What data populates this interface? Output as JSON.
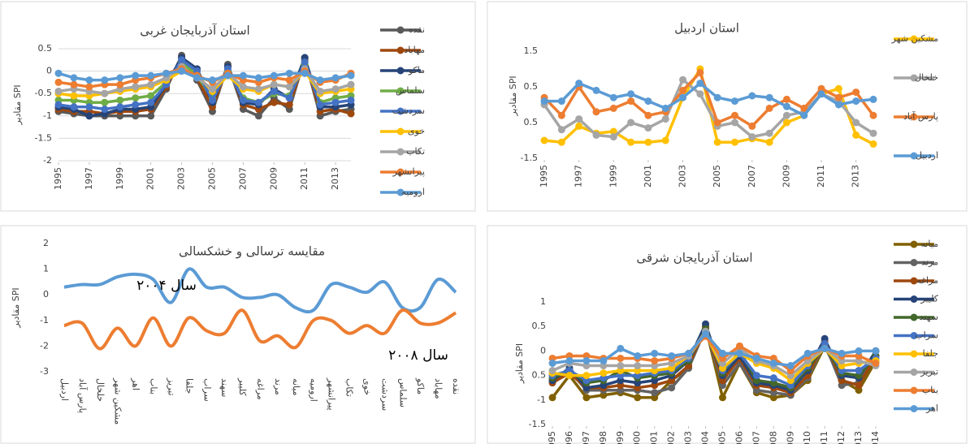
{
  "chart_data": [
    {
      "type": "line",
      "title": "استان آذربایجان غربی",
      "y_label": "مقادیر SPI",
      "x": [
        1995,
        1996,
        1997,
        1998,
        1999,
        2000,
        2001,
        2002,
        2003,
        2004,
        2005,
        2006,
        2007,
        2008,
        2009,
        2010,
        2011,
        2012,
        2013,
        2014
      ],
      "xlim": [
        1995,
        2014
      ],
      "xticks": [
        1995,
        1997,
        1999,
        2001,
        2003,
        2005,
        2007,
        2009,
        2011,
        2013
      ],
      "ylim": [
        -2,
        0.5
      ],
      "yticks": [
        0.5,
        0,
        -0.5,
        -1,
        -1.5,
        -2
      ],
      "grid": true,
      "markers": true,
      "legend": "right",
      "series": [
        {
          "name": "نقده",
          "color": "#595959",
          "values": [
            -0.9,
            -0.95,
            -1,
            -1,
            -1,
            -1,
            -1,
            -0.4,
            0.35,
            -0.2,
            -0.9,
            0.15,
            -0.85,
            -1,
            -0.6,
            -0.85,
            0.3,
            -1,
            -0.9,
            -0.85
          ]
        },
        {
          "name": "مهاباد",
          "color": "#9e480e",
          "values": [
            -0.85,
            -0.9,
            -0.9,
            -0.95,
            -0.9,
            -0.9,
            -0.85,
            -0.35,
            0.3,
            -0.15,
            -0.8,
            0.1,
            -0.75,
            -0.85,
            -0.7,
            -0.75,
            0.25,
            -0.9,
            -0.85,
            -0.95
          ]
        },
        {
          "name": "ماکو",
          "color": "#264478",
          "values": [
            -0.8,
            -0.85,
            -1,
            -0.95,
            -0.85,
            -0.85,
            -0.8,
            -0.3,
            0.3,
            0.05,
            -0.7,
            0.1,
            -0.7,
            -0.75,
            -0.4,
            -0.6,
            0.3,
            -0.8,
            -0.8,
            -0.75
          ]
        },
        {
          "name": "سلماس",
          "color": "#70ad47",
          "values": [
            -0.65,
            -0.65,
            -0.7,
            -0.7,
            -0.65,
            -0.6,
            -0.55,
            -0.25,
            0.2,
            -0.1,
            -0.6,
            0,
            -0.6,
            -0.7,
            -0.5,
            -0.55,
            0.15,
            -0.7,
            -0.6,
            -0.55
          ]
        },
        {
          "name": "سردشت",
          "color": "#4472c4",
          "values": [
            -0.75,
            -0.8,
            -0.8,
            -0.85,
            -0.8,
            -0.75,
            -0.7,
            -0.3,
            0.25,
            0,
            -0.65,
            0.05,
            -0.65,
            -0.7,
            -0.45,
            -0.6,
            0.2,
            -0.75,
            -0.7,
            -0.65
          ]
        },
        {
          "name": "خوی",
          "color": "#ffc000",
          "values": [
            -0.5,
            -0.55,
            -0.55,
            -0.5,
            -0.45,
            -0.4,
            -0.35,
            -0.2,
            0,
            -0.1,
            -0.45,
            -0.1,
            -0.4,
            -0.45,
            -0.3,
            -0.35,
            0,
            -0.5,
            -0.45,
            -0.4
          ]
        },
        {
          "name": "تکاب",
          "color": "#a5a5a5",
          "values": [
            -0.45,
            -0.4,
            -0.45,
            -0.5,
            -0.4,
            -0.35,
            -0.3,
            -0.15,
            0.1,
            -0.15,
            -0.4,
            -0.05,
            -0.35,
            -0.4,
            -0.3,
            -0.35,
            0.05,
            -0.45,
            -0.4,
            -0.3
          ]
        },
        {
          "name": "پیرانشهر",
          "color": "#ed7d31",
          "values": [
            -0.25,
            -0.3,
            -0.35,
            -0.3,
            -0.3,
            -0.2,
            -0.15,
            -0.05,
            0.05,
            -0.1,
            -0.25,
            -0.05,
            -0.2,
            -0.25,
            -0.15,
            -0.2,
            0,
            -0.25,
            -0.2,
            -0.05
          ]
        },
        {
          "name": "ارومیه",
          "color": "#5b9bd5",
          "values": [
            -0.05,
            -0.15,
            -0.2,
            -0.2,
            -0.15,
            -0.1,
            -0.1,
            -0.05,
            0,
            -0.15,
            -0.2,
            -0.1,
            -0.1,
            -0.15,
            -0.1,
            -0.05,
            -0.05,
            -0.2,
            -0.15,
            -0.1
          ]
        }
      ]
    },
    {
      "type": "line",
      "title": "استان اردبیل",
      "y_label": "مقادیر SPI",
      "x": [
        1995,
        1996,
        1997,
        1998,
        1999,
        2000,
        2001,
        2002,
        2003,
        2004,
        2005,
        2006,
        2007,
        2008,
        2009,
        2010,
        2011,
        2012,
        2013,
        2014
      ],
      "xlim": [
        1995,
        2014
      ],
      "xticks": [
        1995,
        1997,
        1999,
        2001,
        2003,
        2005,
        2007,
        2009,
        2011,
        2013
      ],
      "ylim": [
        -1.5,
        2
      ],
      "yticks": [
        1.5,
        0.5,
        {
          "value": -0.5,
          "label": "0.5"
        },
        -1.5
      ],
      "grid": false,
      "markers": true,
      "legend": "right",
      "series": [
        {
          "name": "مشکین شهر",
          "color": "#ffc000",
          "values": [
            -1,
            -1.05,
            -0.6,
            -0.8,
            -0.75,
            -1.05,
            -1.05,
            -1,
            0.2,
            1,
            -1.05,
            -1.05,
            -0.95,
            -1.05,
            -0.5,
            -0.3,
            0.3,
            0.45,
            -0.85,
            -1.1
          ]
        },
        {
          "name": "خلخال",
          "color": "#a5a5a5",
          "values": [
            0,
            -0.7,
            -0.4,
            -0.85,
            -0.9,
            -0.5,
            -0.65,
            -0.4,
            0.7,
            0.3,
            -0.6,
            -0.5,
            -0.9,
            -0.8,
            -0.3,
            -0.2,
            0.3,
            0.1,
            -0.5,
            -0.8
          ]
        },
        {
          "name": "پارس آباد",
          "color": "#ed7d31",
          "values": [
            0.2,
            -0.3,
            0.5,
            -0.2,
            -0.1,
            0.1,
            -0.3,
            -0.2,
            0.4,
            0.9,
            -0.5,
            -0.3,
            -0.6,
            -0.1,
            0.15,
            -0.1,
            0.45,
            0.2,
            0.35,
            -0.3
          ]
        },
        {
          "name": "اردبیل",
          "color": "#5b9bd5",
          "values": [
            0.1,
            0.1,
            0.6,
            0.4,
            0.2,
            0.3,
            0.1,
            -0.1,
            0.2,
            0.6,
            0.2,
            0.1,
            0.25,
            0.2,
            -0.05,
            -0.3,
            0.3,
            0,
            0.1,
            0.15
          ]
        }
      ]
    },
    {
      "type": "line",
      "title": "مقایسه ترسالی و خشکسالی",
      "y_label": "مقادیر SPI",
      "categories": [
        "اردبیل",
        "پارس آباد",
        "خلخال",
        "مشکین شهر",
        "اهر",
        "بناب",
        "تبریز",
        "جلفا",
        "سراب",
        "سهند",
        "کلیبر",
        "مراغه",
        "مرند",
        "میانه",
        "ارومیه",
        "پیرانشهر",
        "تکاب",
        "خوی",
        "سردشت",
        "سلماس",
        "ماکو",
        "مهاباد",
        "نقده"
      ],
      "ylim": [
        -3,
        2
      ],
      "yticks": [
        2,
        1,
        0,
        -1,
        -2,
        -3
      ],
      "grid": false,
      "markers": false,
      "smooth": true,
      "annotations": [
        "سال ۲۰۰۴",
        "سال ۲۰۰۸"
      ],
      "series": [
        {
          "color": "#5b9bd5",
          "values": [
            0.3,
            0.4,
            0.4,
            0.7,
            0.8,
            0.6,
            -0.3,
            1,
            0.3,
            0.3,
            -0.1,
            -0.1,
            0,
            -0.5,
            -0.6,
            0.4,
            0.3,
            0.1,
            0.5,
            -0.5,
            -0.5,
            0.6,
            0.1
          ]
        },
        {
          "color": "#ed7d31",
          "values": [
            -1.2,
            -1.1,
            -2.1,
            -1.3,
            -2,
            -0.9,
            -2,
            -0.9,
            -1.4,
            -1.5,
            -0.6,
            -1.8,
            -1.6,
            -2.05,
            -1,
            -1,
            -1.5,
            -1.2,
            -1.5,
            -0.6,
            -1.1,
            -1.1,
            -0.7
          ]
        }
      ]
    },
    {
      "type": "line",
      "title": "استان آذربایجان شرقی",
      "y_label": "مقادیر SPI",
      "x": [
        1995,
        1996,
        1997,
        1998,
        1999,
        2000,
        2001,
        2002,
        2003,
        2004,
        2005,
        2006,
        2007,
        2008,
        2009,
        2010,
        2011,
        2012,
        2013,
        2014
      ],
      "xlim": [
        1995,
        2014
      ],
      "xticks": [
        1995,
        1996,
        1997,
        1998,
        1999,
        2000,
        2001,
        2002,
        2003,
        2004,
        2005,
        2006,
        2007,
        2008,
        2009,
        2010,
        2011,
        2012,
        2013,
        2014
      ],
      "ylim": [
        -1.5,
        1
      ],
      "yticks": [
        1,
        0.5,
        0,
        {
          "value": -0.5,
          "label": "0.5"
        },
        -1,
        -1.5
      ],
      "grid": false,
      "markers": true,
      "legend": "right",
      "series": [
        {
          "name": "میانه",
          "color": "#806000",
          "values": [
            -0.95,
            -0.5,
            -0.95,
            -0.9,
            -0.85,
            -0.95,
            -0.95,
            -0.6,
            -0.35,
            0.5,
            -0.95,
            -0.25,
            -0.85,
            -0.95,
            -0.9,
            -0.6,
            0.1,
            -0.6,
            -0.8,
            -0.2
          ]
        },
        {
          "name": "مرند",
          "color": "#636363",
          "values": [
            -0.6,
            -0.4,
            -0.8,
            -0.8,
            -0.8,
            -0.8,
            -0.85,
            -0.75,
            -0.35,
            0.45,
            -0.7,
            -0.25,
            -0.8,
            -0.85,
            -0.9,
            -0.55,
            0.15,
            -0.7,
            -0.65,
            0
          ]
        },
        {
          "name": "مراغه",
          "color": "#9e480e",
          "values": [
            -0.65,
            -0.45,
            -0.75,
            -0.75,
            -0.7,
            -0.75,
            -0.7,
            -0.6,
            -0.3,
            0.5,
            -0.6,
            -0.15,
            -0.7,
            -0.75,
            -0.85,
            -0.5,
            0.2,
            -0.6,
            -0.7,
            -0.1
          ]
        },
        {
          "name": "کلیبر",
          "color": "#264478",
          "values": [
            -0.6,
            -0.35,
            -0.75,
            -0.7,
            -0.6,
            -0.65,
            -0.6,
            -0.5,
            -0.2,
            0.55,
            -0.5,
            -0.1,
            -0.65,
            -0.7,
            -0.8,
            -0.4,
            0.25,
            -0.5,
            -0.55,
            0
          ]
        },
        {
          "name": "سهند",
          "color": "#43682b",
          "values": [
            -0.55,
            -0.4,
            -0.65,
            -0.6,
            -0.4,
            -0.55,
            -0.5,
            -0.45,
            -0.2,
            0.45,
            -0.45,
            0,
            -0.6,
            -0.65,
            -0.75,
            -0.35,
            0.1,
            -0.45,
            -0.5,
            -0.1
          ]
        },
        {
          "name": "سراب",
          "color": "#4472c4",
          "values": [
            -0.5,
            -0.4,
            -0.6,
            -0.55,
            -0.5,
            -0.5,
            -0.45,
            -0.4,
            -0.15,
            0.4,
            -0.4,
            -0.05,
            -0.5,
            -0.55,
            -0.7,
            -0.3,
            0.15,
            -0.4,
            -0.4,
            -0.15
          ]
        },
        {
          "name": "جلفا",
          "color": "#ffc000",
          "values": [
            -0.45,
            -0.5,
            -0.5,
            -0.45,
            -0.4,
            -0.4,
            -0.4,
            -0.35,
            -0.1,
            0.35,
            -0.35,
            -0.05,
            -0.25,
            -0.35,
            -0.6,
            -0.25,
            0.05,
            -0.3,
            -0.25,
            -0.2
          ]
        },
        {
          "name": "تبریز",
          "color": "#a5a5a5",
          "values": [
            -0.4,
            -0.25,
            -0.3,
            -0.3,
            -0.3,
            -0.3,
            -0.3,
            -0.25,
            -0.1,
            0.4,
            -0.25,
            0.05,
            -0.2,
            -0.3,
            -0.5,
            -0.2,
            0.05,
            -0.2,
            -0.2,
            -0.3
          ]
        },
        {
          "name": "بناب",
          "color": "#ed7d31",
          "values": [
            -0.15,
            -0.1,
            -0.1,
            -0.15,
            -0.15,
            -0.15,
            -0.2,
            -0.15,
            -0.05,
            0.3,
            -0.15,
            0.1,
            -0.1,
            -0.15,
            -0.4,
            -0.1,
            0.05,
            -0.1,
            -0.1,
            -0.25
          ]
        },
        {
          "name": "اهر",
          "color": "#5b9bd5",
          "values": [
            -0.25,
            -0.2,
            -0.2,
            -0.2,
            0.05,
            -0.1,
            -0.05,
            -0.1,
            -0.05,
            0.35,
            -0.05,
            -0.05,
            -0.15,
            -0.25,
            -0.3,
            -0.05,
            0.05,
            -0.05,
            0,
            0
          ]
        }
      ]
    }
  ]
}
